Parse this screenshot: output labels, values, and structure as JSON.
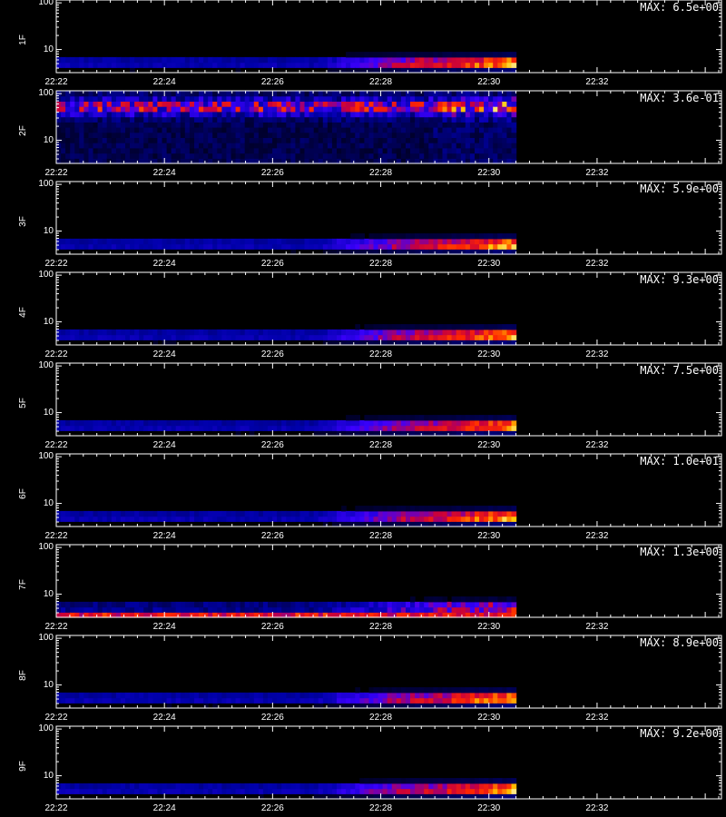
{
  "chart_data": {
    "type": "heatmap",
    "xticks": [
      "22:22",
      "22:24",
      "22:26",
      "22:28",
      "22:30",
      "22:32"
    ],
    "yticks": [
      "10",
      "100"
    ],
    "x_range_minutes": [
      "22:22",
      "22:34.3"
    ],
    "data_end": "22:30.5",
    "panels": [
      {
        "label": "1F",
        "max_label": "MAX: 6.5e+00",
        "pattern": "bright"
      },
      {
        "label": "2F",
        "max_label": "MAX: 3.6e-01",
        "pattern": "noisy"
      },
      {
        "label": "3F",
        "max_label": "MAX: 5.9e+00",
        "pattern": "bright"
      },
      {
        "label": "4F",
        "max_label": "MAX: 9.3e+00",
        "pattern": "bright"
      },
      {
        "label": "5F",
        "max_label": "MAX: 7.5e+00",
        "pattern": "bright"
      },
      {
        "label": "6F",
        "max_label": "MAX: 1.0e+01",
        "pattern": "bright"
      },
      {
        "label": "7F",
        "max_label": "MAX: 1.3e+00",
        "pattern": "split"
      },
      {
        "label": "8F",
        "max_label": "MAX: 8.9e+00",
        "pattern": "bright"
      },
      {
        "label": "9F",
        "max_label": "MAX: 9.2e+00",
        "pattern": "bright"
      }
    ]
  },
  "colors": {
    "axis": "#ffffff",
    "background": "#000000"
  }
}
